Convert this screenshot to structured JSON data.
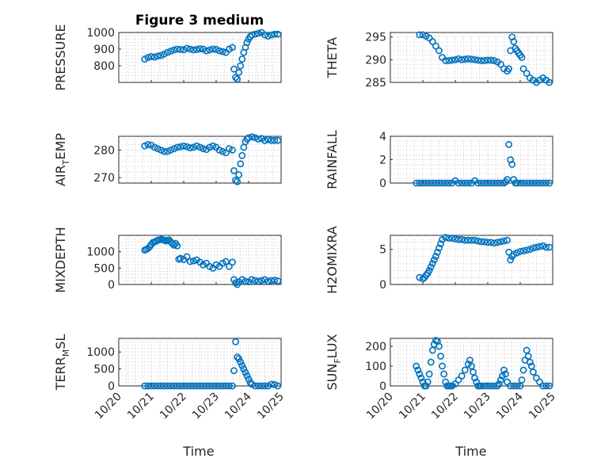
{
  "figure": {
    "title": "Figure 3 medium",
    "x_ticks": [
      "10/20",
      "10/21",
      "10/22",
      "10/23",
      "10/24",
      "10/25"
    ],
    "x_label": "Time",
    "point_color": "#0072BD"
  },
  "chart_data": [
    {
      "type": "scatter",
      "ylabel": "PRESSURE",
      "ylim": [
        700,
        1000
      ],
      "yticks": [
        800,
        900,
        1000
      ],
      "xlim": [
        0,
        5
      ],
      "grid": true,
      "x": [
        0.8,
        0.9,
        1.0,
        1.1,
        1.2,
        1.3,
        1.4,
        1.5,
        1.6,
        1.7,
        1.8,
        1.9,
        2.0,
        2.1,
        2.2,
        2.3,
        2.4,
        2.5,
        2.6,
        2.7,
        2.8,
        2.9,
        3.0,
        3.1,
        3.2,
        3.3,
        3.4,
        3.5,
        3.55,
        3.6,
        3.65,
        3.7,
        3.75,
        3.8,
        3.85,
        3.9,
        3.95,
        4.0,
        4.05,
        4.1,
        4.2,
        4.3,
        4.4,
        4.5,
        4.6,
        4.7,
        4.8,
        4.9
      ],
      "y": [
        840,
        850,
        855,
        852,
        858,
        862,
        870,
        880,
        888,
        895,
        900,
        898,
        896,
        905,
        900,
        895,
        898,
        902,
        900,
        890,
        895,
        900,
        898,
        890,
        885,
        880,
        900,
        910,
        780,
        730,
        720,
        760,
        800,
        840,
        880,
        910,
        940,
        960,
        975,
        985,
        990,
        995,
        1000,
        985,
        978,
        985,
        990,
        990
      ]
    },
    {
      "type": "scatter",
      "ylabel": "THETA",
      "ylim": [
        285,
        296
      ],
      "yticks": [
        285,
        290,
        295
      ],
      "xlim": [
        0,
        5
      ],
      "grid": true,
      "x": [
        0.9,
        1.0,
        1.1,
        1.2,
        1.3,
        1.4,
        1.5,
        1.6,
        1.7,
        1.8,
        1.9,
        2.0,
        2.1,
        2.2,
        2.3,
        2.4,
        2.5,
        2.6,
        2.7,
        2.8,
        2.9,
        3.0,
        3.1,
        3.2,
        3.3,
        3.4,
        3.5,
        3.6,
        3.65,
        3.7,
        3.75,
        3.8,
        3.85,
        3.9,
        3.95,
        4.0,
        4.05,
        4.1,
        4.2,
        4.3,
        4.4,
        4.5,
        4.6,
        4.7,
        4.8,
        4.9
      ],
      "y": [
        295.5,
        295.5,
        295.2,
        294.8,
        294.0,
        293.0,
        292.0,
        290.5,
        289.8,
        289.8,
        289.9,
        290.0,
        290.2,
        290.0,
        290.1,
        290.2,
        290.1,
        290.0,
        289.9,
        289.8,
        289.8,
        289.9,
        289.9,
        289.8,
        289.5,
        289.0,
        288.0,
        287.5,
        288.0,
        292.0,
        295.0,
        294.0,
        292.5,
        292.0,
        291.5,
        291.0,
        290.5,
        288.0,
        287.0,
        286.0,
        285.5,
        285.0,
        285.5,
        286.0,
        285.5,
        285.0
      ]
    },
    {
      "type": "scatter",
      "ylabel": "AIR",
      "ylabel_sub": "T",
      "ylabel_rest": "EMP",
      "ylim": [
        268,
        285
      ],
      "yticks": [
        270,
        280
      ],
      "xlim": [
        0,
        5
      ],
      "grid": true,
      "x": [
        0.8,
        0.9,
        1.0,
        1.1,
        1.2,
        1.3,
        1.4,
        1.5,
        1.6,
        1.7,
        1.8,
        1.9,
        2.0,
        2.1,
        2.2,
        2.3,
        2.4,
        2.5,
        2.6,
        2.7,
        2.8,
        2.9,
        3.0,
        3.1,
        3.2,
        3.3,
        3.4,
        3.5,
        3.55,
        3.6,
        3.65,
        3.7,
        3.75,
        3.8,
        3.85,
        3.9,
        3.95,
        4.0,
        4.1,
        4.2,
        4.3,
        4.4,
        4.5,
        4.6,
        4.7,
        4.8,
        4.9
      ],
      "y": [
        281.5,
        282.0,
        281.8,
        281.0,
        280.5,
        280.0,
        279.5,
        279.5,
        280.0,
        280.5,
        281.0,
        281.2,
        281.5,
        281.2,
        280.8,
        281.0,
        281.5,
        281.0,
        280.5,
        280.2,
        281.0,
        281.5,
        281.0,
        280.0,
        279.5,
        279.0,
        280.5,
        280.0,
        272.5,
        269.0,
        268.5,
        271.0,
        275.0,
        278.0,
        281.0,
        283.0,
        284.0,
        284.5,
        284.8,
        284.5,
        284.0,
        284.2,
        283.5,
        283.8,
        283.5,
        283.5,
        283.5
      ]
    },
    {
      "type": "scatter",
      "ylabel": "RAINFALL",
      "ylim": [
        0,
        4
      ],
      "yticks": [
        0,
        2,
        4
      ],
      "xlim": [
        0,
        5
      ],
      "grid": true,
      "x": [
        0.8,
        0.9,
        1.0,
        1.1,
        1.2,
        1.3,
        1.4,
        1.5,
        1.6,
        1.7,
        1.8,
        1.9,
        2.0,
        2.1,
        2.2,
        2.3,
        2.4,
        2.5,
        2.6,
        2.7,
        2.8,
        2.9,
        3.0,
        3.1,
        3.2,
        3.3,
        3.4,
        3.5,
        3.55,
        3.6,
        3.65,
        3.7,
        3.75,
        3.8,
        3.85,
        3.9,
        4.0,
        4.1,
        4.2,
        4.3,
        4.4,
        4.5,
        4.6,
        4.7,
        4.8,
        4.9
      ],
      "y": [
        0,
        0,
        0,
        0,
        0,
        0,
        0,
        0,
        0,
        0,
        0,
        0,
        0.2,
        0,
        0,
        0,
        0,
        0,
        0.2,
        0,
        0,
        0,
        0,
        0,
        0,
        0,
        0,
        0,
        0.1,
        0.3,
        3.3,
        2.0,
        1.6,
        0.3,
        0,
        0,
        0,
        0,
        0,
        0,
        0,
        0,
        0,
        0,
        0,
        0
      ]
    },
    {
      "type": "scatter",
      "ylabel": "MIXDEPTH",
      "ylim": [
        0,
        1500
      ],
      "yticks": [
        0,
        500,
        1000
      ],
      "xlim": [
        0,
        5
      ],
      "grid": true,
      "x": [
        0.8,
        0.85,
        0.9,
        0.95,
        1.0,
        1.05,
        1.1,
        1.15,
        1.2,
        1.25,
        1.3,
        1.35,
        1.4,
        1.45,
        1.5,
        1.55,
        1.6,
        1.65,
        1.7,
        1.75,
        1.8,
        1.85,
        1.9,
        2.0,
        2.1,
        2.2,
        2.3,
        2.4,
        2.5,
        2.6,
        2.7,
        2.8,
        2.9,
        3.0,
        3.1,
        3.2,
        3.3,
        3.4,
        3.5,
        3.55,
        3.6,
        3.65,
        3.7,
        3.8,
        3.9,
        4.0,
        4.1,
        4.2,
        4.3,
        4.4,
        4.5,
        4.6,
        4.7,
        4.8,
        4.9
      ],
      "y": [
        1050,
        1070,
        1100,
        1150,
        1220,
        1280,
        1300,
        1320,
        1350,
        1360,
        1380,
        1370,
        1350,
        1330,
        1350,
        1360,
        1300,
        1250,
        1200,
        1250,
        1180,
        770,
        800,
        760,
        850,
        700,
        720,
        750,
        680,
        600,
        650,
        550,
        500,
        600,
        550,
        650,
        700,
        550,
        680,
        150,
        50,
        0,
        80,
        150,
        100,
        80,
        150,
        120,
        100,
        120,
        150,
        100,
        120,
        130,
        110
      ]
    },
    {
      "type": "scatter",
      "ylabel": "H2OMIXRA",
      "ylim": [
        0,
        7
      ],
      "yticks": [
        0,
        5
      ],
      "xlim": [
        0,
        5
      ],
      "grid": true,
      "x": [
        0.9,
        1.0,
        1.05,
        1.1,
        1.15,
        1.2,
        1.25,
        1.3,
        1.35,
        1.4,
        1.45,
        1.5,
        1.55,
        1.6,
        1.7,
        1.8,
        1.9,
        2.0,
        2.1,
        2.2,
        2.3,
        2.4,
        2.5,
        2.6,
        2.7,
        2.8,
        2.9,
        3.0,
        3.1,
        3.2,
        3.3,
        3.4,
        3.5,
        3.6,
        3.65,
        3.7,
        3.75,
        3.8,
        3.9,
        4.0,
        4.1,
        4.2,
        4.3,
        4.4,
        4.5,
        4.6,
        4.7,
        4.8,
        4.9
      ],
      "y": [
        1.0,
        0.8,
        1.0,
        1.3,
        1.6,
        2.0,
        2.5,
        3.0,
        3.5,
        4.0,
        4.6,
        5.2,
        5.8,
        6.4,
        6.7,
        6.6,
        6.6,
        6.5,
        6.4,
        6.4,
        6.3,
        6.3,
        6.3,
        6.3,
        6.2,
        6.1,
        6.1,
        6.0,
        6.0,
        5.9,
        6.0,
        6.1,
        6.2,
        6.3,
        4.6,
        3.5,
        4.0,
        4.3,
        4.5,
        4.7,
        4.8,
        4.9,
        5.0,
        5.2,
        5.3,
        5.4,
        5.5,
        5.3,
        5.3
      ]
    },
    {
      "type": "scatter",
      "ylabel": "TERR",
      "ylabel_sub": "M",
      "ylabel_rest": "SL",
      "ylim": [
        0,
        1400
      ],
      "yticks": [
        0,
        500,
        1000
      ],
      "xlim": [
        0,
        5
      ],
      "grid": true,
      "x": [
        0.8,
        0.9,
        1.0,
        1.1,
        1.2,
        1.3,
        1.4,
        1.5,
        1.6,
        1.7,
        1.8,
        1.9,
        2.0,
        2.1,
        2.2,
        2.3,
        2.4,
        2.5,
        2.6,
        2.7,
        2.8,
        2.9,
        3.0,
        3.1,
        3.2,
        3.3,
        3.4,
        3.5,
        3.55,
        3.6,
        3.65,
        3.7,
        3.75,
        3.8,
        3.85,
        3.9,
        3.95,
        4.0,
        4.05,
        4.1,
        4.2,
        4.3,
        4.4,
        4.5,
        4.6,
        4.7,
        4.8,
        4.9
      ],
      "y": [
        0,
        0,
        0,
        0,
        0,
        0,
        0,
        0,
        0,
        0,
        0,
        0,
        0,
        0,
        0,
        0,
        0,
        0,
        0,
        0,
        0,
        0,
        0,
        0,
        0,
        0,
        0,
        0,
        450,
        1300,
        850,
        800,
        700,
        600,
        500,
        400,
        300,
        200,
        100,
        50,
        0,
        0,
        0,
        0,
        0,
        50,
        40,
        0
      ]
    },
    {
      "type": "scatter",
      "ylabel": "SUN",
      "ylabel_sub": "F",
      "ylabel_rest": "LUX",
      "ylim": [
        0,
        240
      ],
      "yticks": [
        0,
        100,
        200
      ],
      "xlim": [
        0,
        5
      ],
      "grid": true,
      "x": [
        0.8,
        0.85,
        0.9,
        0.95,
        1.0,
        1.05,
        1.1,
        1.15,
        1.2,
        1.25,
        1.3,
        1.35,
        1.4,
        1.45,
        1.5,
        1.55,
        1.6,
        1.65,
        1.7,
        1.75,
        1.8,
        1.85,
        1.9,
        2.0,
        2.1,
        2.2,
        2.3,
        2.4,
        2.45,
        2.5,
        2.55,
        2.6,
        2.65,
        2.7,
        2.75,
        2.8,
        2.9,
        3.0,
        3.1,
        3.2,
        3.3,
        3.35,
        3.4,
        3.45,
        3.5,
        3.55,
        3.6,
        3.7,
        3.8,
        3.9,
        4.0,
        4.05,
        4.1,
        4.15,
        4.2,
        4.25,
        4.3,
        4.35,
        4.4,
        4.5,
        4.6,
        4.7,
        4.8,
        4.9
      ],
      "y": [
        100,
        80,
        60,
        40,
        20,
        0,
        0,
        20,
        60,
        120,
        180,
        210,
        230,
        225,
        200,
        150,
        100,
        60,
        20,
        0,
        0,
        0,
        0,
        10,
        30,
        50,
        80,
        110,
        130,
        100,
        70,
        40,
        20,
        0,
        0,
        0,
        0,
        0,
        0,
        0,
        0,
        10,
        30,
        50,
        80,
        60,
        20,
        0,
        0,
        0,
        0,
        30,
        80,
        130,
        180,
        150,
        120,
        100,
        70,
        40,
        20,
        0,
        0,
        0
      ]
    }
  ]
}
